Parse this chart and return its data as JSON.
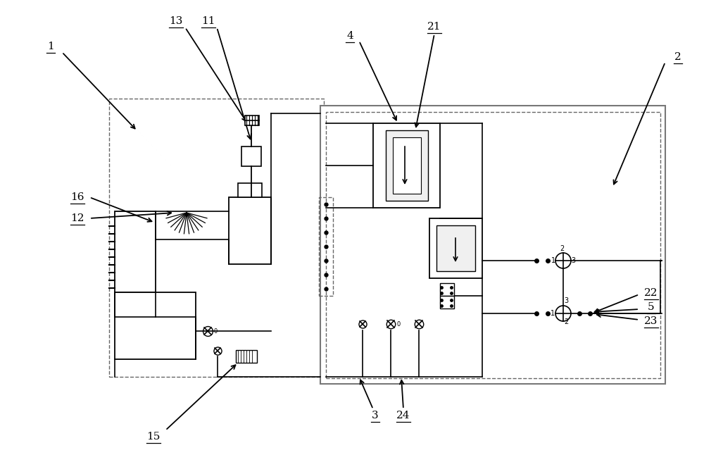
{
  "bg_color": "#ffffff",
  "line_color": "#000000",
  "dashed_color": "#666666",
  "gray_color": "#777777",
  "light_gray": "#aaaaaa"
}
